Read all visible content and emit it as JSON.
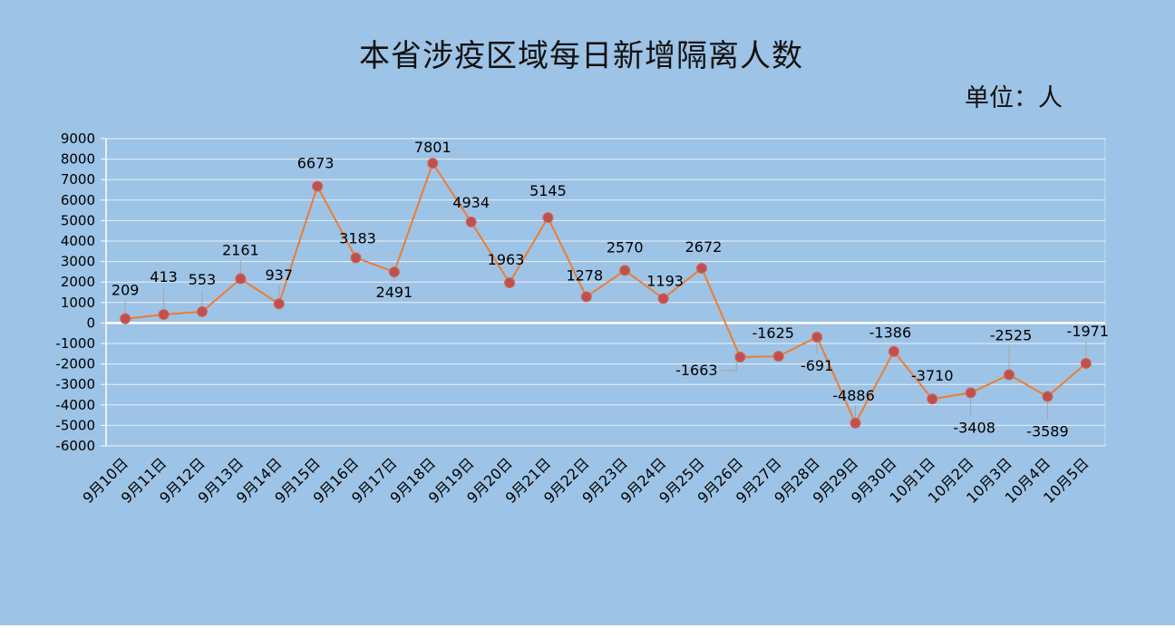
{
  "chart_data": {
    "type": "line",
    "title": "本省涉疫区域每日新增隔离人数",
    "unit_label": "单位：人",
    "xlabel": "",
    "ylabel": "",
    "ylim": [
      -6000,
      9000
    ],
    "ytick_step": 1000,
    "grid": true,
    "legend": "none",
    "categories": [
      "9月10日",
      "9月11日",
      "9月12日",
      "9月13日",
      "9月14日",
      "9月15日",
      "9月16日",
      "9月17日",
      "9月18日",
      "9月19日",
      "9月20日",
      "9月21日",
      "9月22日",
      "9月23日",
      "9月24日",
      "9月25日",
      "9月26日",
      "9月27日",
      "9月28日",
      "9月29日",
      "9月30日",
      "10月1日",
      "10月2日",
      "10月3日",
      "10月4日",
      "10月5日"
    ],
    "series": [
      {
        "values": [
          209,
          413,
          553,
          2161,
          937,
          6673,
          3183,
          2491,
          7801,
          4934,
          1963,
          5145,
          1278,
          2570,
          1193,
          2672,
          -1663,
          -1625,
          -691,
          -4886,
          -1386,
          -3710,
          -3408,
          -2525,
          -3589,
          -1971
        ],
        "line_color": "#ed7d31",
        "marker_color": "#c0504d"
      }
    ]
  }
}
